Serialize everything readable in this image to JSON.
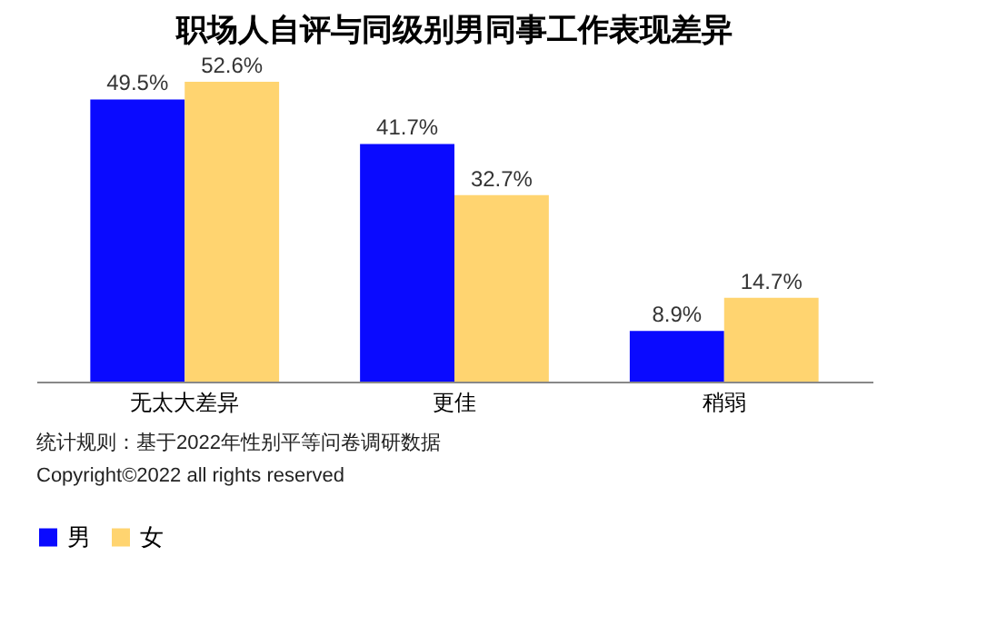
{
  "chart_data": {
    "type": "bar",
    "title": "职场人自评与同级别男同事工作表现差异",
    "categories": [
      "无太大差异",
      "更佳",
      "稍弱"
    ],
    "series": [
      {
        "name": "男",
        "color": "#0a0aff",
        "values": [
          49.5,
          41.7,
          8.9
        ],
        "value_labels": [
          "49.5%",
          "41.7%",
          "8.9%"
        ]
      },
      {
        "name": "女",
        "color": "#ffd470",
        "values": [
          52.6,
          32.7,
          14.7
        ],
        "value_labels": [
          "52.6%",
          "32.7%",
          "14.7%"
        ]
      }
    ],
    "legend": "bottom",
    "annotations": [
      "统计规则：基于2022年性别平等问卷调研数据",
      "Copyright©2022 all rights reserved"
    ]
  }
}
